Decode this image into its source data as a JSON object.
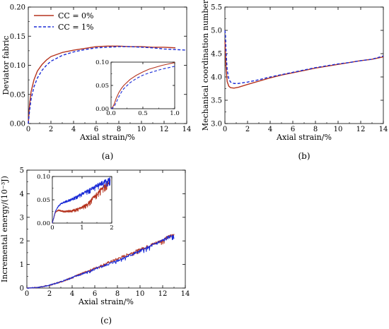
{
  "colors": {
    "cc0": "#b5331e",
    "cc1": "#1a2bd6"
  },
  "chart_data": [
    {
      "id": "a",
      "type": "line",
      "panel_label": "(a)",
      "xlabel": "Axial strain/%",
      "ylabel": "Deviator fabric",
      "xlim": [
        0,
        14
      ],
      "ylim": [
        0,
        0.2
      ],
      "xticks": [
        "0",
        "2",
        "4",
        "6",
        "8",
        "10",
        "12",
        "14"
      ],
      "yticks": [
        "0.00",
        "0.05",
        "0.10",
        "0.15",
        "0.20"
      ],
      "legend": {
        "position": "top-left",
        "entries": [
          "CC = 0%",
          "CC = 1%"
        ]
      },
      "series": [
        {
          "name": "CC = 0%",
          "style": "solid",
          "x": [
            0,
            0.1,
            0.25,
            0.5,
            0.8,
            1.2,
            1.6,
            2,
            3,
            4,
            5,
            6,
            7,
            8,
            9,
            10,
            11,
            12,
            13
          ],
          "values": [
            0,
            0.03,
            0.055,
            0.075,
            0.09,
            0.101,
            0.109,
            0.115,
            0.122,
            0.126,
            0.129,
            0.132,
            0.133,
            0.133,
            0.132,
            0.132,
            0.131,
            0.131,
            0.13
          ]
        },
        {
          "name": "CC = 1%",
          "style": "dashed",
          "x": [
            0,
            0.1,
            0.25,
            0.5,
            0.8,
            1.2,
            1.6,
            2,
            3,
            4,
            5,
            6,
            7,
            8,
            9,
            10,
            11,
            12,
            13,
            14
          ],
          "values": [
            0,
            0.02,
            0.042,
            0.063,
            0.078,
            0.091,
            0.1,
            0.107,
            0.117,
            0.123,
            0.127,
            0.13,
            0.131,
            0.132,
            0.132,
            0.131,
            0.13,
            0.128,
            0.127,
            0.126
          ]
        }
      ],
      "inset": {
        "xlim": [
          0,
          1
        ],
        "ylim": [
          0,
          0.1
        ],
        "xticks": [
          "0.0",
          "0.5",
          "1.0"
        ],
        "yticks": [
          "0.00",
          "0.05",
          "0.10"
        ],
        "series": [
          {
            "name": "CC = 0%",
            "style": "solid",
            "x": [
              0,
              0.02,
              0.05,
              0.08,
              0.12,
              0.16,
              0.2,
              0.3,
              0.4,
              0.5,
              0.6,
              0.7,
              0.8,
              0.9,
              1.0
            ],
            "values": [
              0,
              0.002,
              0.01,
              0.022,
              0.034,
              0.043,
              0.05,
              0.063,
              0.072,
              0.079,
              0.085,
              0.089,
              0.093,
              0.096,
              0.099
            ]
          },
          {
            "name": "CC = 1%",
            "style": "dashed",
            "x": [
              0,
              0.02,
              0.05,
              0.08,
              0.12,
              0.16,
              0.2,
              0.3,
              0.4,
              0.5,
              0.6,
              0.7,
              0.8,
              0.9,
              1.0
            ],
            "values": [
              0,
              0.001,
              0.005,
              0.013,
              0.025,
              0.035,
              0.043,
              0.056,
              0.065,
              0.072,
              0.077,
              0.081,
              0.085,
              0.088,
              0.091
            ]
          }
        ]
      }
    },
    {
      "id": "b",
      "type": "line",
      "panel_label": "(b)",
      "xlabel": "Axial strain/%",
      "ylabel": "Mechanical coordination number",
      "xlim": [
        0,
        14
      ],
      "ylim": [
        3.0,
        5.5
      ],
      "xticks": [
        "0",
        "2",
        "4",
        "6",
        "8",
        "10",
        "12",
        "14"
      ],
      "yticks": [
        "3.0",
        "3.5",
        "4.0",
        "4.5",
        "5.0",
        "5.5"
      ],
      "series": [
        {
          "name": "CC = 0%",
          "style": "solid",
          "x": [
            0,
            0.1,
            0.2,
            0.35,
            0.5,
            0.8,
            1.2,
            2,
            3,
            4,
            5,
            6,
            7,
            8,
            9,
            10,
            11,
            12,
            13,
            14
          ],
          "values": [
            4.78,
            4.2,
            3.9,
            3.8,
            3.77,
            3.76,
            3.78,
            3.84,
            3.91,
            3.98,
            4.04,
            4.09,
            4.14,
            4.19,
            4.23,
            4.27,
            4.31,
            4.35,
            4.38,
            4.43
          ]
        },
        {
          "name": "CC = 1%",
          "style": "dashed",
          "x": [
            0,
            0.05,
            0.1,
            0.2,
            0.35,
            0.5,
            0.8,
            1.2,
            2,
            3,
            4,
            5,
            6,
            7,
            8,
            9,
            10,
            11,
            12,
            13,
            14
          ],
          "values": [
            5.0,
            4.9,
            4.55,
            4.15,
            3.95,
            3.89,
            3.86,
            3.86,
            3.89,
            3.94,
            4.0,
            4.05,
            4.1,
            4.15,
            4.2,
            4.24,
            4.28,
            4.31,
            4.35,
            4.38,
            4.45
          ]
        }
      ]
    },
    {
      "id": "c",
      "type": "line",
      "panel_label": "(c)",
      "xlabel": "Axial strain/%",
      "ylabel": "Incremental energy/(10⁻³J)",
      "xlim": [
        0,
        14
      ],
      "ylim": [
        0,
        5
      ],
      "xticks": [
        "0",
        "2",
        "4",
        "6",
        "8",
        "10",
        "12",
        "14"
      ],
      "yticks": [
        "0",
        "1",
        "2",
        "3",
        "4",
        "5"
      ],
      "series": [
        {
          "name": "CC = 0%",
          "style": "noisy",
          "x": [
            0,
            1,
            2,
            3,
            4,
            5,
            6,
            7,
            8,
            9,
            10,
            11,
            12,
            13
          ],
          "values": [
            0,
            0.03,
            0.12,
            0.27,
            0.45,
            0.65,
            0.84,
            1.04,
            1.24,
            1.44,
            1.64,
            1.84,
            2.04,
            2.3
          ]
        },
        {
          "name": "CC = 1%",
          "style": "noisy",
          "x": [
            0,
            1,
            2,
            3,
            4,
            5,
            6,
            7,
            8,
            9,
            10,
            11,
            12,
            13
          ],
          "values": [
            0,
            0.03,
            0.12,
            0.27,
            0.45,
            0.62,
            0.8,
            0.98,
            1.17,
            1.37,
            1.57,
            1.8,
            2.02,
            2.28
          ]
        }
      ],
      "inset": {
        "xlim": [
          0,
          2
        ],
        "ylim": [
          0,
          0.1
        ],
        "xticks": [
          "0",
          "1",
          "2"
        ],
        "yticks": [
          "0.00",
          "0.05",
          "0.10"
        ],
        "series": [
          {
            "name": "CC = 0%",
            "style": "noisy",
            "x": [
              0,
              0.1,
              0.2,
              0.3,
              0.4,
              0.6,
              0.8,
              1.0,
              1.2,
              1.4,
              1.6,
              1.8,
              1.95
            ],
            "values": [
              0,
              0.023,
              0.028,
              0.026,
              0.025,
              0.026,
              0.029,
              0.034,
              0.042,
              0.056,
              0.07,
              0.082,
              0.092
            ]
          },
          {
            "name": "CC = 1%",
            "style": "noisy",
            "x": [
              0,
              0.1,
              0.2,
              0.3,
              0.4,
              0.6,
              0.8,
              1.0,
              1.2,
              1.4,
              1.6,
              1.8,
              1.95
            ],
            "values": [
              0,
              0.025,
              0.036,
              0.042,
              0.045,
              0.05,
              0.056,
              0.063,
              0.07,
              0.077,
              0.084,
              0.09,
              0.094
            ]
          }
        ]
      }
    }
  ]
}
